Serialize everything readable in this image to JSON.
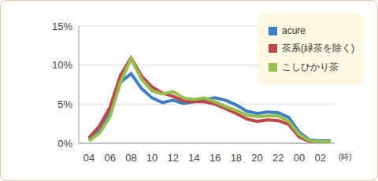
{
  "chart_data": {
    "type": "line",
    "x_label": "(時)",
    "categories": [
      "04",
      null,
      "06",
      null,
      "08",
      null,
      "10",
      null,
      "12",
      null,
      "14",
      null,
      "16",
      null,
      "18",
      null,
      "20",
      null,
      "22",
      null,
      "00",
      null,
      "02",
      null
    ],
    "series": [
      {
        "name": "acure",
        "color": "#3d7fc4",
        "values": [
          0.5,
          1.8,
          4.0,
          7.8,
          8.9,
          7.0,
          5.8,
          5.2,
          5.5,
          5.1,
          5.3,
          5.6,
          5.8,
          5.5,
          4.9,
          4.1,
          3.8,
          4.0,
          3.9,
          3.3,
          1.4,
          0.4,
          0.3,
          0.3
        ]
      },
      {
        "name": "茶系(緑茶を除く)",
        "color": "#c2454b",
        "values": [
          0.7,
          2.2,
          4.6,
          8.7,
          10.9,
          8.6,
          7.2,
          6.4,
          6.0,
          5.4,
          5.3,
          5.3,
          5.0,
          4.4,
          3.8,
          3.1,
          2.8,
          3.0,
          2.9,
          2.4,
          0.8,
          0.2,
          0.1,
          0.1
        ]
      },
      {
        "name": "こしひかり茶",
        "color": "#93bf4a",
        "values": [
          0.3,
          1.3,
          3.4,
          7.8,
          10.8,
          8.2,
          6.7,
          6.3,
          6.6,
          5.8,
          5.6,
          5.8,
          5.3,
          4.7,
          4.2,
          3.6,
          3.4,
          3.5,
          3.5,
          2.8,
          1.1,
          0.3,
          0.2,
          0.2
        ]
      }
    ],
    "ylim": [
      0,
      15
    ],
    "yticks": [
      {
        "value": 0,
        "label": "0%"
      },
      {
        "value": 5,
        "label": "5%"
      },
      {
        "value": 10,
        "label": "10%"
      },
      {
        "value": 15,
        "label": "15%"
      }
    ],
    "grid": true,
    "legend": "top-right"
  }
}
